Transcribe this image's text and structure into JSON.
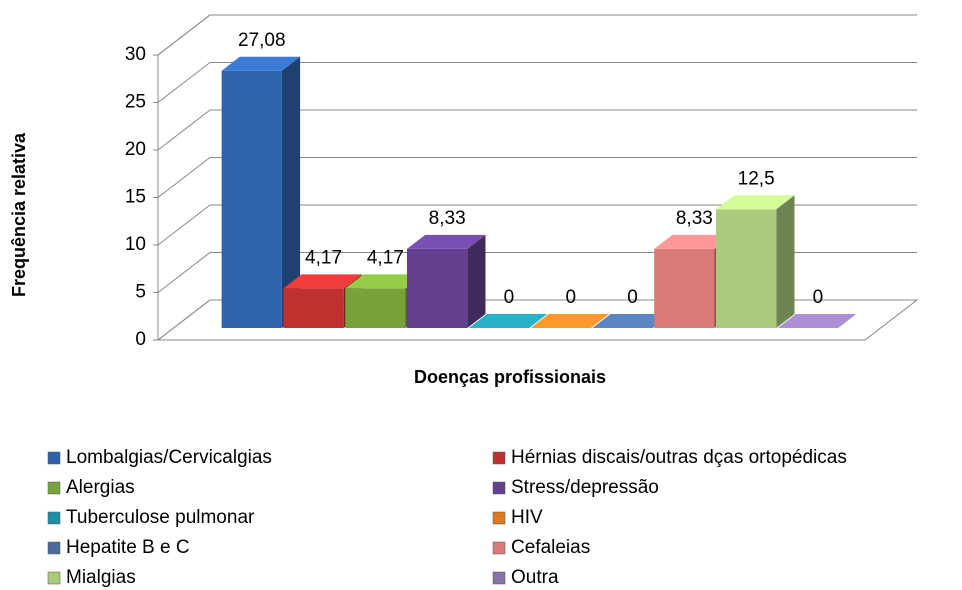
{
  "chart_data": {
    "type": "bar3d",
    "xlabel": "Doenças profissionais",
    "ylabel": "Frequência relativa",
    "categories": [
      "Lombalgias/Cervicalgias",
      "Hérnias discais/outras dças ortopédicas",
      "Alergias",
      "Stress/depressão",
      "Tuberculose pulmonar",
      "HIV",
      "Hepatite B e C",
      "Cefaleias",
      "Mialgias",
      "Outra"
    ],
    "values": [
      27.08,
      4.17,
      4.17,
      8.33,
      0,
      0,
      0,
      8.33,
      12.5,
      0
    ],
    "value_labels": [
      "27,08",
      "4,17",
      "4,17",
      "8,33",
      "0",
      "0",
      "0",
      "8,33",
      "12,5",
      "0"
    ],
    "colors": [
      "#2f62ad",
      "#c0302f",
      "#78a23a",
      "#62408f",
      "#1f8ea3",
      "#e07a1f",
      "#4a6a9c",
      "#d97a7a",
      "#a9cb7b",
      "#8a72aa"
    ],
    "ylim": [
      0,
      30
    ],
    "yticks": [
      0,
      5,
      10,
      15,
      20,
      25,
      30
    ],
    "grid": true
  }
}
